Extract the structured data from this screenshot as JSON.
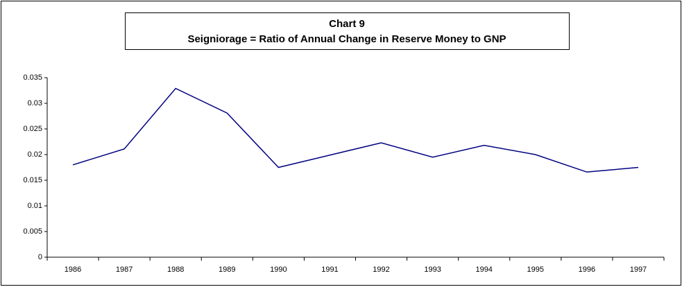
{
  "chart_data": {
    "type": "line",
    "title": "Chart 9",
    "subtitle": "Seigniorage = Ratio of Annual Change in Reserve Money to GNP",
    "categories": [
      "1986",
      "1987",
      "1988",
      "1989",
      "1990",
      "1991",
      "1992",
      "1993",
      "1994",
      "1995",
      "1996",
      "1997"
    ],
    "series": [
      {
        "name": "Seigniorage",
        "color": "#000080",
        "values": [
          0.018,
          0.0211,
          0.0329,
          0.0281,
          0.0175,
          0.0199,
          0.0223,
          0.0195,
          0.0218,
          0.02,
          0.0166,
          0.0175
        ]
      }
    ],
    "ylim": [
      0,
      0.035
    ],
    "yticks": [
      0,
      0.005,
      0.01,
      0.015,
      0.02,
      0.025,
      0.03,
      0.035
    ],
    "grid": false
  }
}
